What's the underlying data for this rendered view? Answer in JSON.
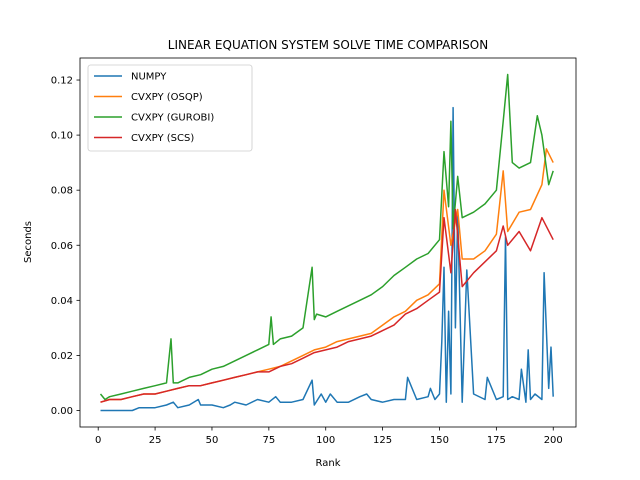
{
  "chart_data": {
    "type": "line",
    "title": "LINEAR EQUATION SYSTEM SOLVE TIME COMPARISON",
    "xlabel": "Rank",
    "ylabel": "Seconds",
    "xlim": [
      -8,
      210
    ],
    "ylim": [
      -0.006,
      0.128
    ],
    "xticks": [
      0,
      25,
      50,
      75,
      100,
      125,
      150,
      175,
      200
    ],
    "yticks": [
      0.0,
      0.02,
      0.04,
      0.06,
      0.08,
      0.1,
      0.12
    ],
    "ytick_labels": [
      "0.00",
      "0.02",
      "0.04",
      "0.06",
      "0.08",
      "0.10",
      "0.12"
    ],
    "legend_position": "top-left",
    "grid": false,
    "series": [
      {
        "name": "NUMPY",
        "color": "#1f77b4",
        "x": [
          1,
          5,
          10,
          15,
          18,
          20,
          25,
          30,
          33,
          35,
          40,
          44,
          45,
          50,
          55,
          58,
          60,
          65,
          70,
          75,
          78,
          80,
          85,
          90,
          94,
          95,
          98,
          100,
          102,
          105,
          110,
          115,
          118,
          120,
          125,
          130,
          135,
          136,
          140,
          145,
          146,
          148,
          150,
          151,
          152,
          153,
          154,
          155,
          156,
          157,
          158,
          160,
          162,
          165,
          170,
          171,
          175,
          178,
          179,
          180,
          182,
          185,
          186,
          188,
          189,
          190,
          192,
          195,
          196,
          198,
          199,
          200
        ],
        "y": [
          0.0,
          0.0,
          0.0,
          0.0,
          0.001,
          0.001,
          0.001,
          0.002,
          0.003,
          0.001,
          0.002,
          0.004,
          0.002,
          0.002,
          0.001,
          0.002,
          0.003,
          0.002,
          0.004,
          0.003,
          0.005,
          0.003,
          0.003,
          0.004,
          0.011,
          0.002,
          0.006,
          0.003,
          0.006,
          0.003,
          0.003,
          0.005,
          0.006,
          0.004,
          0.003,
          0.004,
          0.004,
          0.012,
          0.004,
          0.005,
          0.008,
          0.004,
          0.006,
          0.025,
          0.052,
          0.003,
          0.036,
          0.006,
          0.11,
          0.03,
          0.072,
          0.003,
          0.051,
          0.006,
          0.004,
          0.012,
          0.004,
          0.005,
          0.063,
          0.004,
          0.005,
          0.004,
          0.015,
          0.003,
          0.022,
          0.004,
          0.006,
          0.004,
          0.05,
          0.008,
          0.023,
          0.005
        ]
      },
      {
        "name": "CVXPY (OSQP)",
        "color": "#ff7f0e",
        "x": [
          1,
          5,
          10,
          15,
          20,
          25,
          30,
          35,
          40,
          45,
          50,
          55,
          60,
          65,
          70,
          75,
          80,
          85,
          90,
          95,
          100,
          105,
          110,
          115,
          120,
          125,
          130,
          135,
          140,
          145,
          150,
          152,
          155,
          158,
          160,
          165,
          170,
          175,
          178,
          180,
          185,
          190,
          195,
          197,
          200
        ],
        "y": [
          0.003,
          0.004,
          0.004,
          0.005,
          0.006,
          0.006,
          0.007,
          0.008,
          0.009,
          0.009,
          0.01,
          0.011,
          0.012,
          0.013,
          0.014,
          0.015,
          0.016,
          0.018,
          0.02,
          0.022,
          0.023,
          0.025,
          0.026,
          0.027,
          0.028,
          0.031,
          0.034,
          0.036,
          0.04,
          0.042,
          0.046,
          0.08,
          0.06,
          0.073,
          0.055,
          0.055,
          0.058,
          0.064,
          0.087,
          0.065,
          0.072,
          0.073,
          0.082,
          0.095,
          0.09
        ]
      },
      {
        "name": "CVXPY (GUROBI)",
        "color": "#2ca02c",
        "x": [
          1,
          3,
          5,
          10,
          15,
          20,
          25,
          30,
          32,
          33,
          35,
          40,
          45,
          50,
          55,
          60,
          65,
          70,
          75,
          76,
          77,
          80,
          85,
          90,
          94,
          95,
          96,
          100,
          105,
          110,
          115,
          120,
          125,
          130,
          135,
          140,
          145,
          150,
          152,
          154,
          155,
          156,
          158,
          160,
          165,
          170,
          175,
          178,
          180,
          182,
          185,
          190,
          193,
          195,
          198,
          200
        ],
        "y": [
          0.006,
          0.004,
          0.005,
          0.006,
          0.007,
          0.008,
          0.009,
          0.01,
          0.026,
          0.01,
          0.01,
          0.012,
          0.013,
          0.015,
          0.016,
          0.018,
          0.02,
          0.022,
          0.024,
          0.034,
          0.024,
          0.026,
          0.027,
          0.03,
          0.052,
          0.033,
          0.035,
          0.034,
          0.036,
          0.038,
          0.04,
          0.042,
          0.045,
          0.049,
          0.052,
          0.055,
          0.057,
          0.062,
          0.094,
          0.074,
          0.105,
          0.066,
          0.085,
          0.07,
          0.072,
          0.075,
          0.08,
          0.105,
          0.122,
          0.09,
          0.088,
          0.09,
          0.107,
          0.1,
          0.082,
          0.087
        ]
      },
      {
        "name": "CVXPY (SCS)",
        "color": "#d62728",
        "x": [
          1,
          5,
          10,
          15,
          20,
          25,
          30,
          35,
          40,
          45,
          50,
          55,
          60,
          65,
          70,
          75,
          80,
          85,
          90,
          95,
          100,
          105,
          110,
          115,
          120,
          125,
          130,
          135,
          140,
          145,
          150,
          152,
          155,
          157,
          160,
          165,
          170,
          175,
          178,
          180,
          185,
          190,
          195,
          200
        ],
        "y": [
          0.003,
          0.004,
          0.004,
          0.005,
          0.006,
          0.006,
          0.007,
          0.008,
          0.009,
          0.009,
          0.01,
          0.011,
          0.012,
          0.013,
          0.014,
          0.014,
          0.016,
          0.017,
          0.019,
          0.021,
          0.022,
          0.023,
          0.025,
          0.026,
          0.027,
          0.029,
          0.031,
          0.035,
          0.037,
          0.04,
          0.043,
          0.07,
          0.05,
          0.073,
          0.045,
          0.05,
          0.054,
          0.058,
          0.067,
          0.06,
          0.065,
          0.058,
          0.07,
          0.062
        ]
      }
    ]
  }
}
